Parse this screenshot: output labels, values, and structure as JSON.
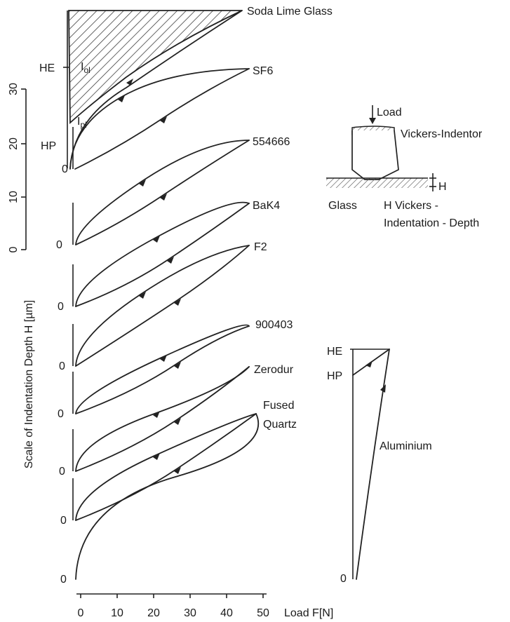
{
  "chart_data": {
    "type": "line",
    "xlabel": "Load F[N]",
    "ylabel": "Scale of Indentation Depth H [µm]",
    "x_ticks": [
      "0",
      "10",
      "20",
      "30",
      "40",
      "50"
    ],
    "y_scale_ticks": [
      "0",
      "10",
      "20",
      "30"
    ],
    "xlim": [
      0,
      50
    ],
    "ylim": [
      0,
      30
    ],
    "baseline_zero_label": "0",
    "hysteresis_labels": {
      "elastic_limit": "HE",
      "plastic_depth": "HP",
      "open_loop_main": "I",
      "open_loop_sub": "ol",
      "plastic_loop_main": "I",
      "plastic_loop_sub": "pl"
    },
    "series": [
      {
        "name": "Soda Lime Glass"
      },
      {
        "name": "SF6"
      },
      {
        "name": "554666"
      },
      {
        "name": "BaK4"
      },
      {
        "name": "F2"
      },
      {
        "name": "900403"
      },
      {
        "name": "Zerodur"
      },
      {
        "name": "Fused Quartz",
        "name_lines": [
          "Fused",
          "Quartz"
        ]
      },
      {
        "name": "Aluminium"
      }
    ],
    "aluminium": {
      "he_label": "HE",
      "hp_label": "HP",
      "zero_label": "0"
    },
    "inset": {
      "load_label": "Load",
      "indentor_label": "Vickers-Indentor",
      "depth_symbol": "H",
      "glass_label": "Glass",
      "depth_caption_line1": "H Vickers -",
      "depth_caption_line2": "Indentation - Depth"
    }
  }
}
